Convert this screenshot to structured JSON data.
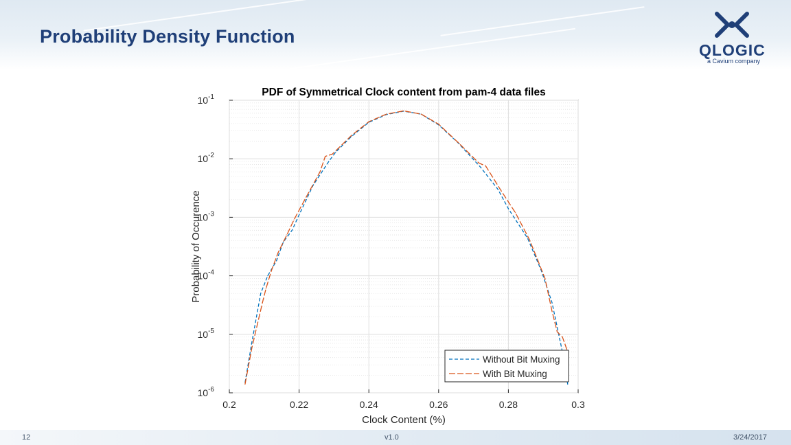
{
  "slide": {
    "title": "Probability Density Function",
    "page_number": "12",
    "version": "v1.0",
    "date": "3/24/2017"
  },
  "logo": {
    "name": "QLOGIC",
    "tagline": "a Cavium company",
    "color": "#1f3f78"
  },
  "chart_data": {
    "type": "line",
    "title": "PDF of Symmetrical Clock content from pam-4 data files",
    "xlabel": "Clock Content (%)",
    "ylabel": "Probability of Occurence",
    "xlim": [
      0.2,
      0.3
    ],
    "ylim": [
      1e-06,
      0.1
    ],
    "yscale": "log",
    "grid": true,
    "legend": "bottom-right",
    "x_ticks": [
      "0.2",
      "0.22",
      "0.24",
      "0.26",
      "0.28",
      "0.3"
    ],
    "y_ticks": [
      {
        "base": "10",
        "exp": "-1",
        "value": 0.1
      },
      {
        "base": "10",
        "exp": "-2",
        "value": 0.01
      },
      {
        "base": "10",
        "exp": "-3",
        "value": 0.001
      },
      {
        "base": "10",
        "exp": "-4",
        "value": 0.0001
      },
      {
        "base": "10",
        "exp": "-5",
        "value": 1e-05
      },
      {
        "base": "10",
        "exp": "-6",
        "value": 1e-06
      }
    ],
    "series": [
      {
        "name": "Without Bit Muxing",
        "color": "#0072bd",
        "dash": "5,3",
        "x": [
          0.2045,
          0.2065,
          0.209,
          0.211,
          0.2135,
          0.2155,
          0.218,
          0.22,
          0.224,
          0.2285,
          0.2305,
          0.235,
          0.24,
          0.245,
          0.25,
          0.255,
          0.26,
          0.2655,
          0.272,
          0.277,
          0.28,
          0.2855,
          0.2895,
          0.2925,
          0.2955,
          0.297
        ],
        "y": [
          1.5e-06,
          7.5e-06,
          5e-05,
          0.0001,
          0.00018,
          0.00038,
          0.0006,
          0.0011,
          0.0035,
          0.009,
          0.013,
          0.024,
          0.042,
          0.057,
          0.065,
          0.058,
          0.038,
          0.019,
          0.0072,
          0.003,
          0.0014,
          0.00044,
          0.00012,
          3.5e-05,
          5e-06,
          1.4e-06
        ]
      },
      {
        "name": "With Bit Muxing",
        "color": "#d95319",
        "dash": "9,3",
        "x": [
          0.2045,
          0.2065,
          0.2095,
          0.2105,
          0.212,
          0.214,
          0.2165,
          0.2185,
          0.222,
          0.226,
          0.2275,
          0.2295,
          0.235,
          0.24,
          0.245,
          0.25,
          0.255,
          0.26,
          0.266,
          0.2715,
          0.2735,
          0.278,
          0.282,
          0.286,
          0.2885,
          0.2905,
          0.2925,
          0.294,
          0.2955,
          0.297
        ],
        "y": [
          1.4e-06,
          6e-06,
          3.5e-05,
          6e-05,
          0.00012,
          0.00025,
          0.0005,
          0.0009,
          0.0022,
          0.006,
          0.011,
          0.012,
          0.025,
          0.043,
          0.058,
          0.066,
          0.058,
          0.039,
          0.018,
          0.0085,
          0.0075,
          0.0028,
          0.0012,
          0.00042,
          0.00018,
          9e-05,
          2.5e-05,
          1.1e-05,
          9e-06,
          5e-06
        ]
      }
    ]
  }
}
